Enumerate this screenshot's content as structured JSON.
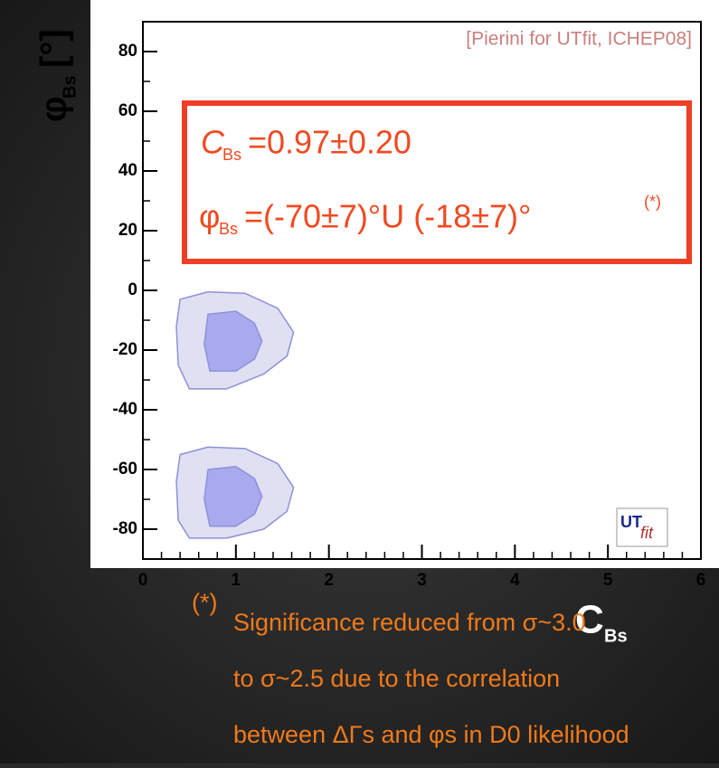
{
  "chart_data": {
    "type": "contour",
    "annotation": "[Pierini for UTfit, ICHEP08]",
    "x_label": {
      "symbol": "C",
      "sub": "Bs"
    },
    "y_label": {
      "symbol": "φ",
      "sub": "Bs",
      "unit": "[°]"
    },
    "xlim": [
      0,
      6
    ],
    "xticks": [
      0,
      1,
      2,
      3,
      4,
      5,
      6
    ],
    "ylim": [
      -90,
      90
    ],
    "yticks": [
      -80,
      -60,
      -40,
      -20,
      0,
      20,
      40,
      60,
      80
    ],
    "regions": [
      {
        "color": "#dfe0f2",
        "x": [
          0.4,
          0.7,
          1.1,
          1.45,
          1.62,
          1.55,
          1.3,
          0.9,
          0.5,
          0.38,
          0.36
        ],
        "y": [
          -3,
          -0.5,
          -1,
          -6,
          -14,
          -22,
          -28,
          -33,
          -33,
          -25,
          -12
        ]
      },
      {
        "color": "#a9aaee",
        "x": [
          0.7,
          1.0,
          1.2,
          1.28,
          1.2,
          1.0,
          0.72,
          0.66
        ],
        "y": [
          -8,
          -7,
          -11,
          -17,
          -23,
          -27,
          -27,
          -18
        ]
      },
      {
        "color": "#dfe0f2",
        "x": [
          0.4,
          0.7,
          1.1,
          1.45,
          1.62,
          1.55,
          1.3,
          0.9,
          0.5,
          0.38,
          0.36
        ],
        "y": [
          -55,
          -52.5,
          -53,
          -58,
          -66,
          -74,
          -80,
          -83,
          -83,
          -77,
          -64
        ]
      },
      {
        "color": "#a9aaee",
        "x": [
          0.7,
          1.0,
          1.2,
          1.28,
          1.2,
          1.0,
          0.72,
          0.66
        ],
        "y": [
          -60,
          -59,
          -63,
          -69,
          -75,
          -79,
          -79,
          -70
        ]
      }
    ],
    "result_box": {
      "line1": {
        "symbol": "C",
        "sub": "Bs",
        "text": "=0.97±0.20"
      },
      "line2": {
        "symbol": "φ",
        "sub": "Bs",
        "text": "=(-70±7)°U (-18±7)°",
        "note": "(*)"
      }
    },
    "logo": {
      "main": "UT",
      "sub": "fit"
    },
    "footnote": {
      "mark": "(*)",
      "lines": [
        "Significance reduced from σ~3.0",
        "to σ~2.5 due to the correlation",
        "between ΔΓs and φs in D0 likelihood"
      ]
    }
  }
}
